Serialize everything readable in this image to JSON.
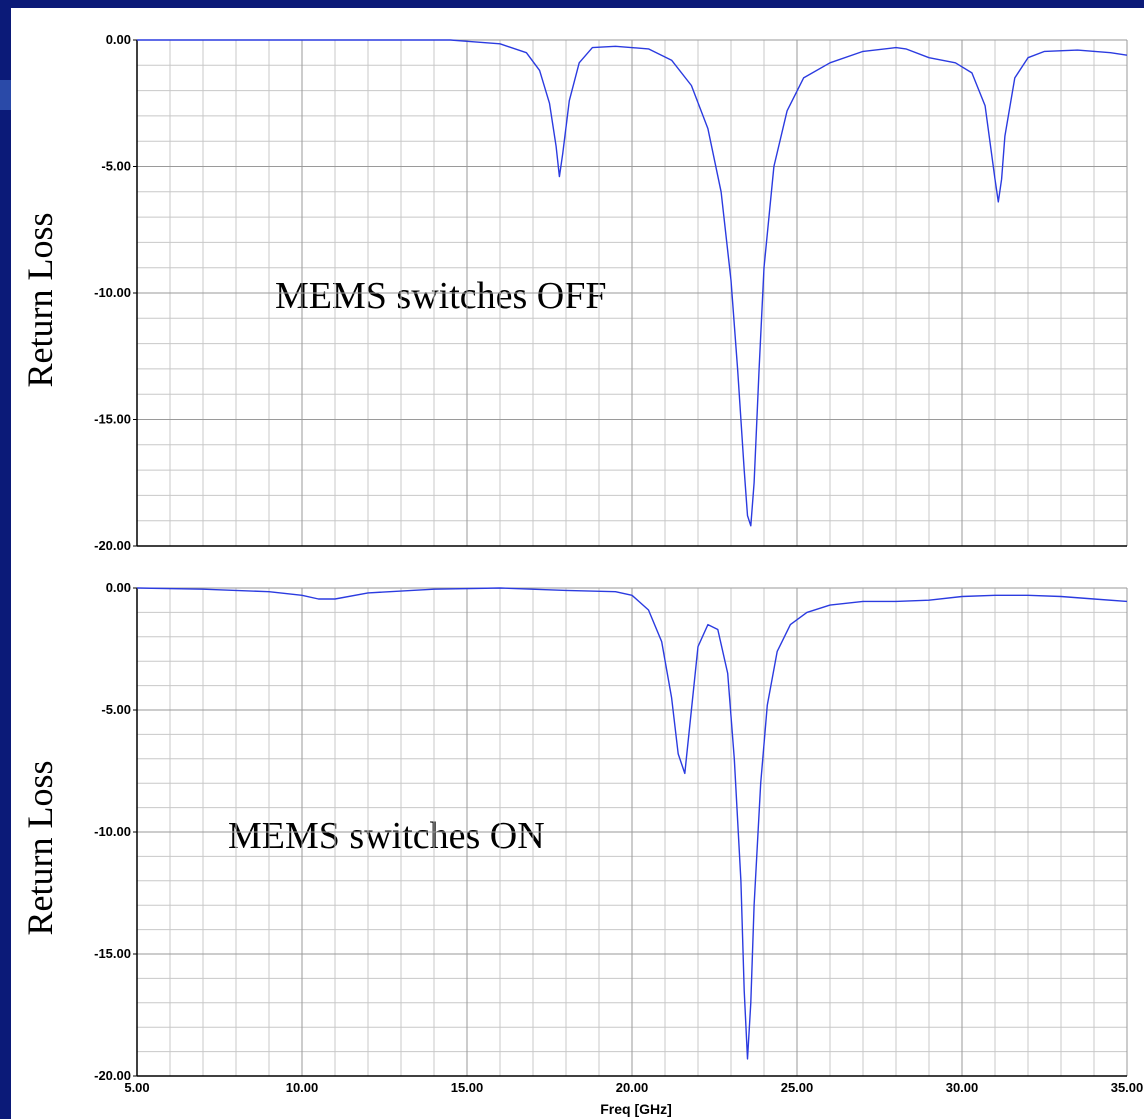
{
  "colors": {
    "frame": "#0b1a78",
    "series": "#2b3be0",
    "grid": "#c8c8c8",
    "axis": "#000000"
  },
  "chart_data": [
    {
      "type": "line",
      "title": "",
      "annotation": "MEMS switches OFF",
      "ylabel": "Return Loss",
      "xlabel": "",
      "xlim": [
        5,
        35
      ],
      "ylim": [
        -20,
        0
      ],
      "x_ticks": [],
      "y_ticks": [
        "0.00",
        "-5.00",
        "-10.00",
        "-15.00",
        "-20.00"
      ],
      "grid": true,
      "series": [
        {
          "x": [
            5,
            10,
            14.5,
            15,
            16,
            16.8,
            17.2,
            17.5,
            17.7,
            17.8,
            17.9,
            18.1,
            18.4,
            18.8,
            19.5,
            20.5,
            21.2,
            21.8,
            22.3,
            22.7,
            23.0,
            23.2,
            23.4,
            23.5,
            23.6,
            23.7,
            23.85,
            24.0,
            24.3,
            24.7,
            25.2,
            26,
            27,
            28,
            28.3,
            29,
            29.8,
            30.3,
            30.7,
            31.0,
            31.1,
            31.2,
            31.3,
            31.6,
            32.0,
            32.5,
            33.5,
            34.5,
            35
          ],
          "y": [
            0,
            0,
            0,
            -0.05,
            -0.15,
            -0.5,
            -1.2,
            -2.5,
            -4.2,
            -5.4,
            -4.5,
            -2.4,
            -0.9,
            -0.3,
            -0.25,
            -0.35,
            -0.8,
            -1.8,
            -3.5,
            -6.0,
            -9.5,
            -13.0,
            -17.0,
            -18.8,
            -19.2,
            -17.5,
            -13.0,
            -9.0,
            -5.0,
            -2.8,
            -1.5,
            -0.9,
            -0.45,
            -0.3,
            -0.35,
            -0.7,
            -0.9,
            -1.3,
            -2.6,
            -5.5,
            -6.4,
            -5.5,
            -3.8,
            -1.5,
            -0.7,
            -0.45,
            -0.4,
            -0.5,
            -0.6
          ]
        }
      ]
    },
    {
      "type": "line",
      "title": "",
      "annotation": "MEMS switches ON",
      "ylabel": "Return Loss",
      "xlabel": "Freq [GHz]",
      "xlim": [
        5,
        35
      ],
      "ylim": [
        -20,
        0
      ],
      "x_ticks": [
        "5.00",
        "10.00",
        "15.00",
        "20.00",
        "25.00",
        "30.00",
        "35.00"
      ],
      "y_ticks": [
        "0.00",
        "-5.00",
        "-10.00",
        "-15.00",
        "-20.00"
      ],
      "grid": true,
      "series": [
        {
          "x": [
            5,
            7,
            9,
            10,
            10.5,
            11,
            12,
            14,
            16,
            18,
            19.5,
            20,
            20.5,
            20.9,
            21.2,
            21.4,
            21.6,
            21.8,
            22.0,
            22.3,
            22.6,
            22.9,
            23.1,
            23.3,
            23.4,
            23.5,
            23.6,
            23.7,
            23.9,
            24.1,
            24.4,
            24.8,
            25.3,
            26,
            27,
            28,
            29,
            30,
            31,
            32,
            33,
            34,
            35
          ],
          "y": [
            0,
            -0.05,
            -0.15,
            -0.3,
            -0.45,
            -0.45,
            -0.2,
            -0.05,
            0,
            -0.1,
            -0.15,
            -0.3,
            -0.9,
            -2.2,
            -4.5,
            -6.8,
            -7.6,
            -5.0,
            -2.4,
            -1.5,
            -1.7,
            -3.5,
            -7.0,
            -12.0,
            -16.5,
            -19.3,
            -17.0,
            -13.0,
            -8.0,
            -4.8,
            -2.6,
            -1.5,
            -1.0,
            -0.7,
            -0.55,
            -0.55,
            -0.5,
            -0.35,
            -0.3,
            -0.3,
            -0.35,
            -0.45,
            -0.55
          ]
        }
      ]
    }
  ]
}
